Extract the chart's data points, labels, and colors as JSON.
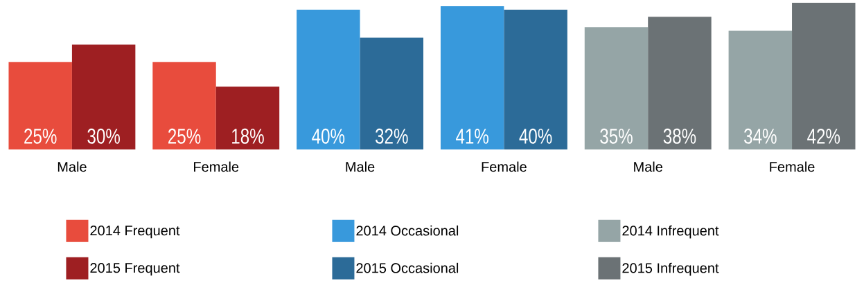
{
  "chart_data": {
    "type": "bar",
    "categories": [
      "Male",
      "Female",
      "Male",
      "Female",
      "Male",
      "Female"
    ],
    "series": [
      {
        "name": "2014 Frequent",
        "color": "#e84c3d",
        "values": [
          25,
          25,
          null,
          null,
          null,
          null
        ],
        "value_labels": [
          "25%",
          "25%",
          null,
          null,
          null,
          null
        ]
      },
      {
        "name": "2015 Frequent",
        "color": "#9e1f22",
        "values": [
          30,
          18,
          null,
          null,
          null,
          null
        ],
        "value_labels": [
          "30%",
          "18%",
          null,
          null,
          null,
          null
        ]
      },
      {
        "name": "2014 Occasional",
        "color": "#3899dc",
        "values": [
          null,
          null,
          40,
          41,
          null,
          null
        ],
        "value_labels": [
          null,
          null,
          "40%",
          "41%",
          null,
          null
        ]
      },
      {
        "name": "2015 Occasional",
        "color": "#2c6b98",
        "values": [
          null,
          null,
          32,
          40,
          null,
          null
        ],
        "value_labels": [
          null,
          null,
          "32%",
          "40%",
          null,
          null
        ]
      },
      {
        "name": "2014 Infrequent",
        "color": "#95a5a6",
        "values": [
          null,
          null,
          null,
          null,
          35,
          34
        ],
        "value_labels": [
          null,
          null,
          null,
          null,
          "35%",
          "34%"
        ]
      },
      {
        "name": "2015 Infrequent",
        "color": "#6b7275",
        "values": [
          null,
          null,
          null,
          null,
          38,
          42
        ],
        "value_labels": [
          null,
          null,
          null,
          null,
          "38%",
          "42%"
        ]
      }
    ],
    "legend": "bottom"
  }
}
